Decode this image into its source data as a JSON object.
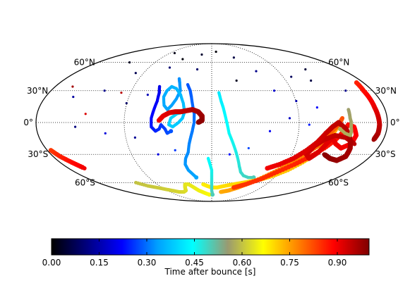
{
  "chart_data": {
    "type": "scatter",
    "projection": "mollweide",
    "grid": true,
    "latitude_lines": [
      -60,
      -30,
      0,
      30,
      60
    ],
    "latitude_labels": [
      "60°N",
      "30°N",
      "0°",
      "30°S",
      "60°S"
    ],
    "inner_circle_dotted": true,
    "colorbar": {
      "label": "Time after bounce [s]",
      "ticks": [
        0.0,
        0.15,
        0.3,
        0.45,
        0.6,
        0.75,
        0.9
      ],
      "tick_labels": [
        "0.00",
        "0.15",
        "0.30",
        "0.45",
        "0.60",
        "0.75",
        "0.90"
      ],
      "range": [
        0.0,
        1.0
      ],
      "colormap": [
        "#000000",
        "#00007f",
        "#0000ff",
        "#00a0ff",
        "#00ffff",
        "#9a9a70",
        "#ffff00",
        "#ff8000",
        "#ff0000",
        "#7f0000"
      ],
      "placement": "bottom"
    },
    "tracks": [
      {
        "t0": 0.32,
        "t1": 0.4,
        "points": [
          [
            -40,
            42
          ],
          [
            -38,
            38
          ],
          [
            -35,
            30
          ],
          [
            -38,
            22
          ],
          [
            -42,
            16
          ],
          [
            -46,
            12
          ],
          [
            -50,
            16
          ],
          [
            -52,
            24
          ],
          [
            -50,
            30
          ],
          [
            -46,
            34
          ],
          [
            -40,
            32
          ],
          [
            -34,
            26
          ],
          [
            -30,
            18
          ],
          [
            -28,
            10
          ],
          [
            -30,
            4
          ],
          [
            -34,
            0
          ],
          [
            -40,
            -4
          ],
          [
            -44,
            -2
          ],
          [
            -42,
            4
          ],
          [
            -36,
            8
          ],
          [
            -28,
            10
          ]
        ]
      },
      {
        "t0": 0.2,
        "t1": 0.28,
        "points": [
          [
            -60,
            34
          ],
          [
            -58,
            28
          ],
          [
            -58,
            20
          ],
          [
            -60,
            12
          ],
          [
            -62,
            4
          ],
          [
            -62,
            -4
          ],
          [
            -58,
            -8
          ],
          [
            -54,
            -6
          ],
          [
            -52,
            -2
          ],
          [
            -48,
            -6
          ],
          [
            -46,
            -10
          ],
          [
            -42,
            -8
          ]
        ]
      },
      {
        "t0": 0.28,
        "t1": 0.34,
        "points": [
          [
            -28,
            36
          ],
          [
            -24,
            30
          ],
          [
            -22,
            24
          ],
          [
            -20,
            16
          ],
          [
            -18,
            8
          ],
          [
            -18,
            0
          ],
          [
            -20,
            -8
          ],
          [
            -22,
            -14
          ],
          [
            -24,
            -20
          ],
          [
            -26,
            -28
          ],
          [
            -30,
            -34
          ],
          [
            -32,
            -40
          ],
          [
            -30,
            -46
          ],
          [
            -26,
            -50
          ],
          [
            -22,
            -54
          ]
        ]
      },
      {
        "t0": 0.9,
        "t1": 0.99,
        "points": [
          [
            -54,
            2
          ],
          [
            -50,
            6
          ],
          [
            -44,
            9
          ],
          [
            -38,
            10
          ],
          [
            -32,
            10
          ],
          [
            -26,
            11
          ],
          [
            -20,
            12
          ],
          [
            -14,
            10
          ],
          [
            -10,
            6
          ],
          [
            -10,
            2
          ],
          [
            -14,
            0
          ]
        ]
      },
      {
        "t0": 0.42,
        "t1": 0.5,
        "points": [
          [
            8,
            28
          ],
          [
            10,
            20
          ],
          [
            12,
            14
          ],
          [
            14,
            6
          ],
          [
            16,
            -2
          ],
          [
            18,
            -10
          ],
          [
            22,
            -18
          ],
          [
            26,
            -26
          ],
          [
            30,
            -34
          ],
          [
            34,
            -42
          ],
          [
            38,
            -48
          ],
          [
            44,
            -52
          ],
          [
            52,
            -54
          ],
          [
            60,
            -54
          ]
        ]
      },
      {
        "t0": 0.6,
        "t1": 0.66,
        "points": [
          [
            -120,
            -60
          ],
          [
            -110,
            -64
          ],
          [
            -100,
            -66
          ],
          [
            -90,
            -68
          ],
          [
            -80,
            -70
          ],
          [
            -70,
            -72
          ],
          [
            -60,
            -72
          ],
          [
            -52,
            -70
          ],
          [
            -48,
            -66
          ],
          [
            -44,
            -62
          ],
          [
            -38,
            -62
          ],
          [
            -32,
            -66
          ],
          [
            -26,
            -70
          ],
          [
            -20,
            -72
          ],
          [
            -14,
            -74
          ],
          [
            -6,
            -76
          ]
        ]
      },
      {
        "t0": 0.68,
        "t1": 0.74,
        "points": [
          [
            -14,
            -62
          ],
          [
            -8,
            -64
          ],
          [
            0,
            -66
          ],
          [
            10,
            -66
          ],
          [
            22,
            -64
          ],
          [
            36,
            -62
          ],
          [
            50,
            -60
          ],
          [
            62,
            -58
          ],
          [
            74,
            -56
          ],
          [
            86,
            -52
          ],
          [
            98,
            -46
          ],
          [
            108,
            -38
          ],
          [
            116,
            -30
          ],
          [
            120,
            -22
          ],
          [
            124,
            -14
          ],
          [
            128,
            -6
          ]
        ]
      },
      {
        "t0": 0.74,
        "t1": 0.82,
        "points": [
          [
            20,
            -72
          ],
          [
            34,
            -70
          ],
          [
            48,
            -66
          ],
          [
            62,
            -60
          ],
          [
            76,
            -52
          ],
          [
            88,
            -44
          ],
          [
            98,
            -36
          ],
          [
            106,
            -28
          ],
          [
            114,
            -22
          ],
          [
            120,
            -14
          ],
          [
            124,
            -8
          ],
          [
            130,
            -2
          ],
          [
            134,
            4
          ]
        ]
      },
      {
        "t0": 0.84,
        "t1": 0.95,
        "points": [
          [
            40,
            -66
          ],
          [
            56,
            -62
          ],
          [
            72,
            -56
          ],
          [
            86,
            -48
          ],
          [
            100,
            -40
          ],
          [
            112,
            -32
          ],
          [
            122,
            -24
          ],
          [
            130,
            -16
          ],
          [
            136,
            -8
          ],
          [
            140,
            -2
          ],
          [
            146,
            -4
          ],
          [
            150,
            -12
          ],
          [
            148,
            -20
          ],
          [
            140,
            -24
          ],
          [
            132,
            -20
          ],
          [
            126,
            -14
          ],
          [
            122,
            -20
          ],
          [
            118,
            -28
          ],
          [
            112,
            -34
          ],
          [
            106,
            -30
          ],
          [
            110,
            -22
          ],
          [
            118,
            -16
          ],
          [
            128,
            -12
          ],
          [
            140,
            -14
          ],
          [
            152,
            -20
          ]
        ]
      },
      {
        "t0": 0.9,
        "t1": 0.99,
        "points": [
          [
            70,
            -44
          ],
          [
            82,
            -40
          ],
          [
            94,
            -34
          ],
          [
            104,
            -26
          ],
          [
            112,
            -18
          ],
          [
            118,
            -10
          ],
          [
            124,
            -4
          ],
          [
            130,
            0
          ],
          [
            138,
            -6
          ],
          [
            144,
            -14
          ],
          [
            150,
            -24
          ],
          [
            152,
            -32
          ],
          [
            146,
            -36
          ],
          [
            136,
            -34
          ],
          [
            126,
            -30
          ]
        ]
      },
      {
        "t0": 0.56,
        "t1": 0.58,
        "points": [
          [
            142,
            12
          ],
          [
            142,
            8
          ],
          [
            142,
            4
          ],
          [
            143,
            0
          ],
          [
            143,
            -4
          ],
          [
            144,
            -8
          ],
          [
            144,
            -12
          ],
          [
            138,
            -10
          ],
          [
            132,
            -6
          ]
        ]
      },
      {
        "t0": 0.86,
        "t1": 0.97,
        "points": [
          [
            172,
            38
          ],
          [
            170,
            30
          ],
          [
            170,
            22
          ],
          [
            170,
            14
          ],
          [
            171,
            6
          ],
          [
            172,
            -2
          ],
          [
            172,
            -10
          ],
          [
            170,
            -16
          ]
        ]
      },
      {
        "t0": 0.84,
        "t1": 0.9,
        "points": [
          [
            -176,
            -26
          ],
          [
            -172,
            -32
          ],
          [
            -166,
            -38
          ],
          [
            -160,
            -44
          ]
        ]
      },
      {
        "t0": 0.44,
        "t1": 0.5,
        "points": [
          [
            -4,
            -34
          ],
          [
            -2,
            -40
          ],
          [
            0,
            -46
          ],
          [
            0,
            -52
          ],
          [
            0,
            -58
          ],
          [
            0,
            -64
          ],
          [
            0,
            -70
          ],
          [
            2,
            -76
          ]
        ]
      }
    ],
    "scattered_points": [
      [
        -80,
        72,
        0.02
      ],
      [
        -20,
        70,
        0.04
      ],
      [
        10,
        74,
        0.01
      ],
      [
        40,
        66,
        0.06
      ],
      [
        -130,
        60,
        0.03
      ],
      [
        -100,
        48,
        0.07
      ],
      [
        -60,
        54,
        0.1
      ],
      [
        60,
        50,
        0.12
      ],
      [
        100,
        44,
        0.08
      ],
      [
        130,
        52,
        0.05
      ],
      [
        -150,
        24,
        0.14
      ],
      [
        -120,
        30,
        0.12
      ],
      [
        -90,
        18,
        0.09
      ],
      [
        -70,
        26,
        0.16
      ],
      [
        70,
        30,
        0.18
      ],
      [
        90,
        20,
        0.15
      ],
      [
        110,
        14,
        0.22
      ],
      [
        -140,
        -4,
        0.11
      ],
      [
        -110,
        -10,
        0.19
      ],
      [
        -80,
        -14,
        0.13
      ],
      [
        60,
        -8,
        0.21
      ],
      [
        80,
        4,
        0.17
      ],
      [
        100,
        -2,
        0.24
      ],
      [
        -60,
        -30,
        0.2
      ],
      [
        -40,
        -26,
        0.26
      ],
      [
        20,
        -30,
        0.23
      ],
      [
        40,
        -24,
        0.27
      ],
      [
        -130,
        8,
        0.92
      ],
      [
        -100,
        28,
        0.95
      ],
      [
        -160,
        34,
        0.97
      ],
      [
        120,
        40,
        0.06
      ],
      [
        -20,
        52,
        0.09
      ],
      [
        30,
        40,
        0.03
      ],
      [
        -50,
        64,
        0.01
      ],
      [
        150,
        30,
        0.12
      ]
    ]
  }
}
